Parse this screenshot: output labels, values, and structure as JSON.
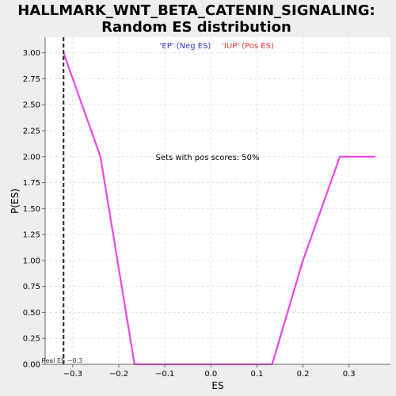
{
  "chart_data": {
    "type": "line",
    "title_lines": [
      "HALLMARK_WNT_BETA_CATENIN_SIGNALING:",
      "Random ES distribution"
    ],
    "xlabel": "ES",
    "ylabel": "P(ES)",
    "xlim": [
      -0.36,
      0.39
    ],
    "ylim": [
      0,
      3.15
    ],
    "xticks": [
      -0.3,
      -0.2,
      -0.1,
      0.0,
      0.1,
      0.2,
      0.3
    ],
    "xtick_labels": [
      "−0.3",
      "−0.2",
      "−0.1",
      "0.0",
      "0.1",
      "0.2",
      "0.3"
    ],
    "yticks": [
      0,
      0.25,
      0.5,
      0.75,
      1.0,
      1.25,
      1.5,
      1.75,
      2.0,
      2.25,
      2.5,
      2.75,
      3.0
    ],
    "ytick_labels": [
      "0.00",
      "0.25",
      "0.50",
      "0.75",
      "1.00",
      "1.25",
      "1.50",
      "1.75",
      "2.00",
      "2.25",
      "2.50",
      "2.75",
      "3.00"
    ],
    "grid": true,
    "series": [
      {
        "color": "#ee44ee",
        "x": [
          -0.32,
          -0.24,
          -0.166,
          0.133,
          0.2,
          0.28,
          0.357
        ],
        "y": [
          3.0,
          2.0,
          0.0,
          0.0,
          1.0,
          2.0,
          2.0
        ]
      }
    ],
    "legend": [
      {
        "label": "'EP' (Neg ES)",
        "color": "#3333cc"
      },
      {
        "label": "'IUP' (Pos ES)",
        "color": "#ee3333"
      }
    ],
    "annotation": "Sets with pos scores: 50%",
    "reference_line": {
      "x": -0.32,
      "label": "Real ES −0.3"
    }
  }
}
